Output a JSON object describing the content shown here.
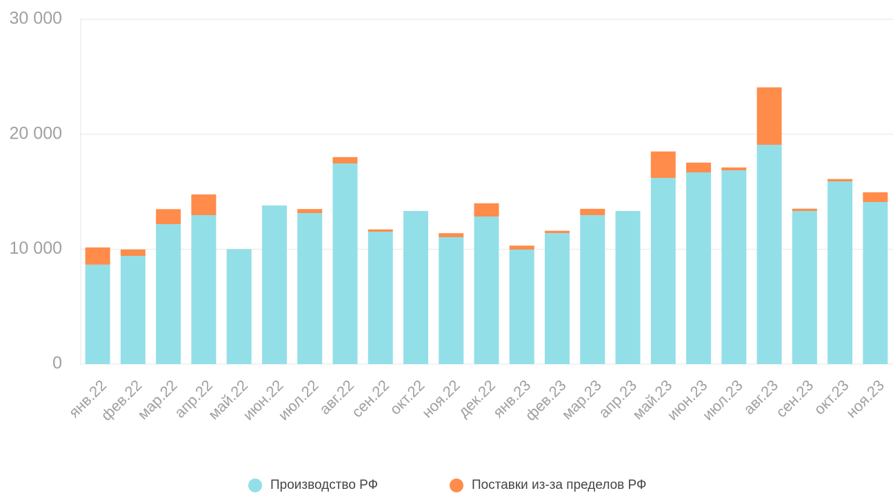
{
  "chart_data": {
    "type": "stacked_bar",
    "categories": [
      "янв.22",
      "фев.22",
      "мар.22",
      "апр.22",
      "май.22",
      "июн.22",
      "июл.22",
      "авг.22",
      "сен.22",
      "окт.22",
      "ноя.22",
      "дек.22",
      "янв.23",
      "фев.23",
      "мар.23",
      "апр.23",
      "май.23",
      "июн.23",
      "июл.23",
      "авг.23",
      "сен.23",
      "окт.23",
      "ноя.23"
    ],
    "series": [
      {
        "name": "Производство РФ",
        "color": "#93dfe8",
        "values": [
          8650,
          9420,
          12180,
          12960,
          10000,
          13800,
          13140,
          17460,
          11520,
          13320,
          11040,
          12840,
          9960,
          11400,
          12960,
          13320,
          16200,
          16680,
          16860,
          19080,
          13320,
          15900,
          14100
        ]
      },
      {
        "name": "Поставки из-за пределов РФ",
        "color": "#ff8c4a",
        "values": [
          1500,
          550,
          1300,
          1800,
          0,
          0,
          350,
          550,
          200,
          0,
          350,
          1150,
          350,
          200,
          550,
          0,
          2300,
          850,
          250,
          5000,
          200,
          200,
          850
        ]
      }
    ],
    "ylim": [
      0,
      30000
    ],
    "yticks": [
      0,
      {
        "value": 10000,
        "label": "10 000"
      },
      {
        "value": 20000,
        "label": "20 000"
      },
      {
        "value": 30000,
        "label": "30 000"
      }
    ],
    "grid": true
  }
}
